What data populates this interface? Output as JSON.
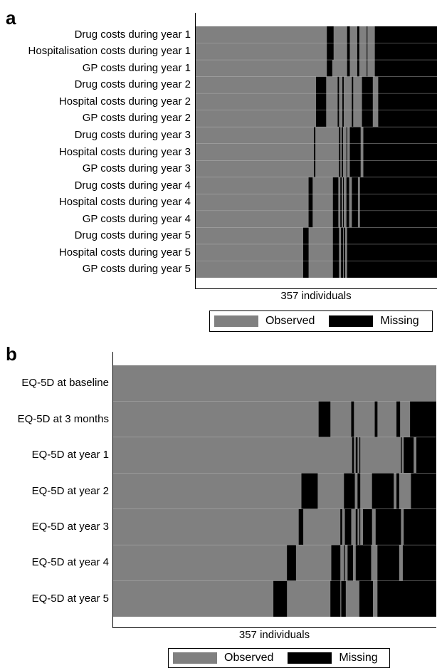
{
  "colors": {
    "observed": "#808080",
    "missing": "#000000",
    "divider": "#b0b0b0"
  },
  "chart_data": [
    {
      "panel": "a",
      "type": "heatmap",
      "xlabel": "357 individuals",
      "n": 357,
      "legend": {
        "entries": [
          "Observed",
          "Missing"
        ],
        "placement": "bottom-right"
      },
      "rows": [
        {
          "label": "Drug costs during year 1",
          "missing": [
            [
              194,
              204
            ],
            [
              224,
              228
            ],
            [
              239,
              242
            ],
            [
              253,
              254
            ],
            [
              265,
              357
            ]
          ]
        },
        {
          "label": "Hospitalisation costs during year 1",
          "missing": [
            [
              194,
              204
            ],
            [
              224,
              228
            ],
            [
              239,
              242
            ],
            [
              253,
              254
            ],
            [
              265,
              357
            ]
          ]
        },
        {
          "label": "GP costs during year 1",
          "missing": [
            [
              194,
              202
            ],
            [
              224,
              228
            ],
            [
              239,
              242
            ],
            [
              253,
              254
            ],
            [
              265,
              357
            ]
          ]
        },
        {
          "label": "Drug costs during year 2",
          "missing": [
            [
              178,
              193
            ],
            [
              210,
              212
            ],
            [
              217,
              219
            ],
            [
              231,
              233
            ],
            [
              246,
              262
            ],
            [
              270,
              357
            ]
          ]
        },
        {
          "label": "Hospital costs during year 2",
          "missing": [
            [
              178,
              193
            ],
            [
              210,
              212
            ],
            [
              217,
              219
            ],
            [
              231,
              233
            ],
            [
              246,
              262
            ],
            [
              270,
              357
            ]
          ]
        },
        {
          "label": "GP costs during year 2",
          "missing": [
            [
              178,
              193
            ],
            [
              210,
              212
            ],
            [
              217,
              219
            ],
            [
              231,
              233
            ],
            [
              246,
              262
            ],
            [
              270,
              357
            ]
          ]
        },
        {
          "label": "Drug costs during year 3",
          "missing": [
            [
              175,
              177
            ],
            [
              212,
              214
            ],
            [
              216,
              218
            ],
            [
              223,
              224
            ],
            [
              228,
              244
            ],
            [
              248,
              357
            ]
          ]
        },
        {
          "label": "Hospital costs during year 3",
          "missing": [
            [
              175,
              177
            ],
            [
              212,
              214
            ],
            [
              216,
              218
            ],
            [
              223,
              224
            ],
            [
              228,
              244
            ],
            [
              248,
              357
            ]
          ]
        },
        {
          "label": "GP costs during year 3",
          "missing": [
            [
              175,
              177
            ],
            [
              212,
              214
            ],
            [
              216,
              218
            ],
            [
              223,
              224
            ],
            [
              228,
              244
            ],
            [
              248,
              357
            ]
          ]
        },
        {
          "label": "Drug costs during year 4",
          "missing": [
            [
              167,
              173
            ],
            [
              203,
              211
            ],
            [
              214,
              216
            ],
            [
              218,
              219
            ],
            [
              223,
              227
            ],
            [
              231,
              240
            ],
            [
              243,
              357
            ]
          ]
        },
        {
          "label": "Hospital costs during year 4",
          "missing": [
            [
              167,
              173
            ],
            [
              203,
              211
            ],
            [
              214,
              216
            ],
            [
              218,
              219
            ],
            [
              223,
              227
            ],
            [
              231,
              240
            ],
            [
              243,
              357
            ]
          ]
        },
        {
          "label": "GP costs during year 4",
          "missing": [
            [
              167,
              173
            ],
            [
              203,
              211
            ],
            [
              214,
              216
            ],
            [
              218,
              219
            ],
            [
              223,
              227
            ],
            [
              231,
              240
            ],
            [
              243,
              357
            ]
          ]
        },
        {
          "label": "Drug costs during year 5",
          "missing": [
            [
              159,
              167
            ],
            [
              203,
              212
            ],
            [
              215,
              218
            ],
            [
              219,
              221
            ],
            [
              224,
              357
            ]
          ]
        },
        {
          "label": "Hospital costs during year 5",
          "missing": [
            [
              159,
              167
            ],
            [
              203,
              212
            ],
            [
              215,
              218
            ],
            [
              219,
              221
            ],
            [
              224,
              357
            ]
          ]
        },
        {
          "label": "GP costs during year 5",
          "missing": [
            [
              159,
              167
            ],
            [
              203,
              212
            ],
            [
              215,
              218
            ],
            [
              219,
              221
            ],
            [
              224,
              357
            ]
          ]
        }
      ]
    },
    {
      "panel": "b",
      "type": "heatmap",
      "xlabel": "357 individuals",
      "n": 357,
      "legend": {
        "entries": [
          "Observed",
          "Missing"
        ],
        "placement": "bottom"
      },
      "rows": [
        {
          "label": "EQ-5D at baseline",
          "missing": []
        },
        {
          "label": "EQ-5D at 3 months",
          "missing": [
            [
              227,
              240
            ],
            [
              263,
              266
            ],
            [
              289,
              292
            ],
            [
              313,
              317
            ],
            [
              328,
              357
            ]
          ]
        },
        {
          "label": "EQ-5D at year 1",
          "missing": [
            [
              264,
              266
            ],
            [
              268,
              270
            ],
            [
              272,
              273
            ],
            [
              318,
              319
            ],
            [
              321,
              332
            ],
            [
              335,
              357
            ]
          ]
        },
        {
          "label": "EQ-5D at year 2",
          "missing": [
            [
              208,
              226
            ],
            [
              255,
              267
            ],
            [
              270,
              273
            ],
            [
              286,
              310
            ],
            [
              313,
              316
            ],
            [
              329,
              357
            ]
          ]
        },
        {
          "label": "EQ-5D at year 3",
          "missing": [
            [
              205,
              210
            ],
            [
              251,
              253
            ],
            [
              256,
              263
            ],
            [
              268,
              270
            ],
            [
              272,
              273
            ],
            [
              276,
              286
            ],
            [
              290,
              318
            ],
            [
              321,
              357
            ]
          ]
        },
        {
          "label": "EQ-5D at year 4",
          "missing": [
            [
              192,
              202
            ],
            [
              241,
              251
            ],
            [
              255,
              256
            ],
            [
              259,
              265
            ],
            [
              268,
              285
            ],
            [
              292,
              316
            ],
            [
              320,
              357
            ]
          ]
        },
        {
          "label": "EQ-5D at year 5",
          "missing": [
            [
              177,
              192
            ],
            [
              240,
              251
            ],
            [
              252,
              257
            ],
            [
              272,
              287
            ],
            [
              292,
              357
            ]
          ]
        }
      ]
    }
  ]
}
